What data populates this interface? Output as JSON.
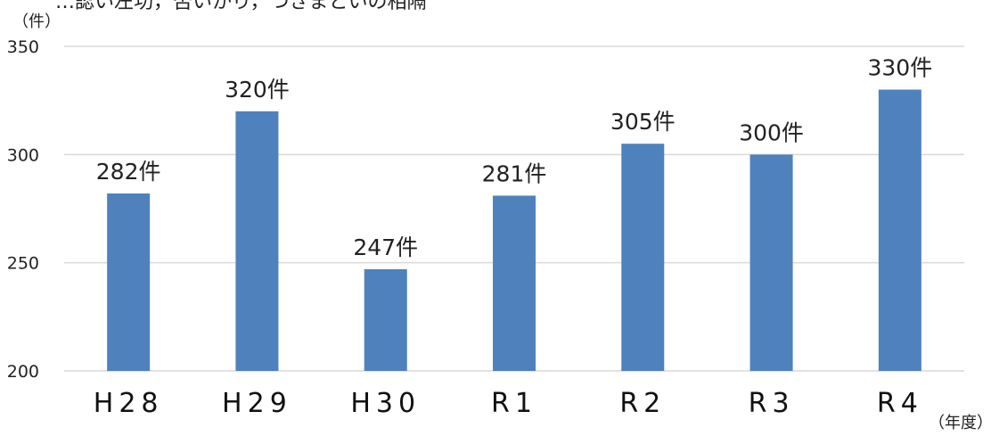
{
  "header": {
    "clipped_title": "…認い左功，否いかり，つきまといの相隔"
  },
  "chart_data": {
    "type": "bar",
    "categories": [
      "H28",
      "H29",
      "H30",
      "R1",
      "R2",
      "R3",
      "R4"
    ],
    "series": [
      {
        "values": [
          282,
          320,
          247,
          281,
          305,
          300,
          330
        ]
      }
    ],
    "data_labels": [
      "282件",
      "320件",
      "247件",
      "281件",
      "305件",
      "300件",
      "330件"
    ],
    "y_ticks": [
      "350",
      "300",
      "250",
      "200"
    ],
    "y_unit": "（件）",
    "x_unit": "（年度）",
    "ylim": [
      200,
      350
    ],
    "grid": true,
    "legend": "none",
    "bar_color": "#4f81bd",
    "grid_color": "#d9d9d9"
  }
}
